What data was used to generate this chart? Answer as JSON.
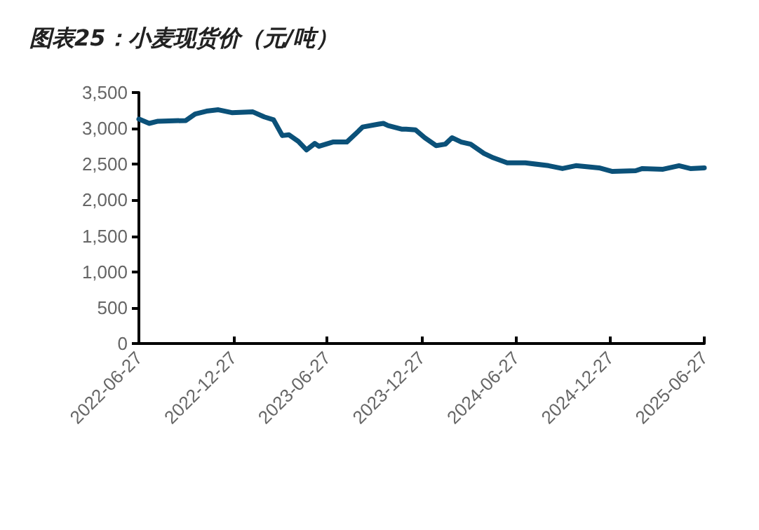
{
  "chart_data": {
    "type": "line",
    "title": "图表25：小麦现货价（元/吨）",
    "x": [
      "2022-06-27",
      "2022-07-17",
      "2022-08-03",
      "2022-09-26",
      "2022-10-14",
      "2022-11-05",
      "2022-11-28",
      "2022-12-24",
      "2023-02-03",
      "2023-02-25",
      "2023-03-15",
      "2023-04-01",
      "2023-04-14",
      "2023-05-02",
      "2023-05-18",
      "2023-06-03",
      "2023-06-11",
      "2023-07-08",
      "2023-08-04",
      "2023-08-22",
      "2023-09-04",
      "2023-10-05",
      "2023-10-14",
      "2023-10-23",
      "2023-11-18",
      "2023-11-27",
      "2023-12-15",
      "2024-01-02",
      "2024-01-24",
      "2024-02-11",
      "2024-02-24",
      "2024-03-13",
      "2024-03-31",
      "2024-04-26",
      "2024-05-14",
      "2024-06-10",
      "2024-07-15",
      "2024-08-29",
      "2024-09-25",
      "2024-10-21",
      "2024-12-05",
      "2024-12-31",
      "2025-02-14",
      "2025-02-27",
      "2025-04-08",
      "2025-05-09",
      "2025-05-31",
      "2025-06-27"
    ],
    "series": [
      {
        "color": "#0b5179",
        "values": [
          3130,
          3070,
          3100,
          3110,
          3200,
          3240,
          3260,
          3220,
          3230,
          3160,
          3120,
          2900,
          2910,
          2820,
          2700,
          2790,
          2750,
          2810,
          2810,
          2930,
          3020,
          3060,
          3070,
          3040,
          2990,
          2990,
          2980,
          2870,
          2760,
          2780,
          2870,
          2810,
          2780,
          2650,
          2590,
          2520,
          2520,
          2480,
          2440,
          2480,
          2450,
          2400,
          2410,
          2440,
          2430,
          2480,
          2440,
          2450
        ]
      }
    ],
    "xlim": [
      "2022-06-27",
      "2025-06-27"
    ],
    "xticks": [
      "2022-06-27",
      "2022-12-27",
      "2023-06-27",
      "2023-12-27",
      "2024-06-27",
      "2024-12-27",
      "2025-06-27"
    ],
    "ylim": [
      0,
      3500
    ],
    "yticks": [
      0,
      {
        "value": 500,
        "label": "500"
      },
      {
        "value": 1000,
        "label": "1,000"
      },
      {
        "value": 1500,
        "label": "1,500"
      },
      {
        "value": 2000,
        "label": "2,000"
      },
      {
        "value": 2500,
        "label": "2,500"
      },
      {
        "value": 3000,
        "label": "3,000"
      },
      {
        "value": 3500,
        "label": "3,500"
      }
    ],
    "grid": false,
    "marker": "none",
    "line_style": "solid"
  }
}
